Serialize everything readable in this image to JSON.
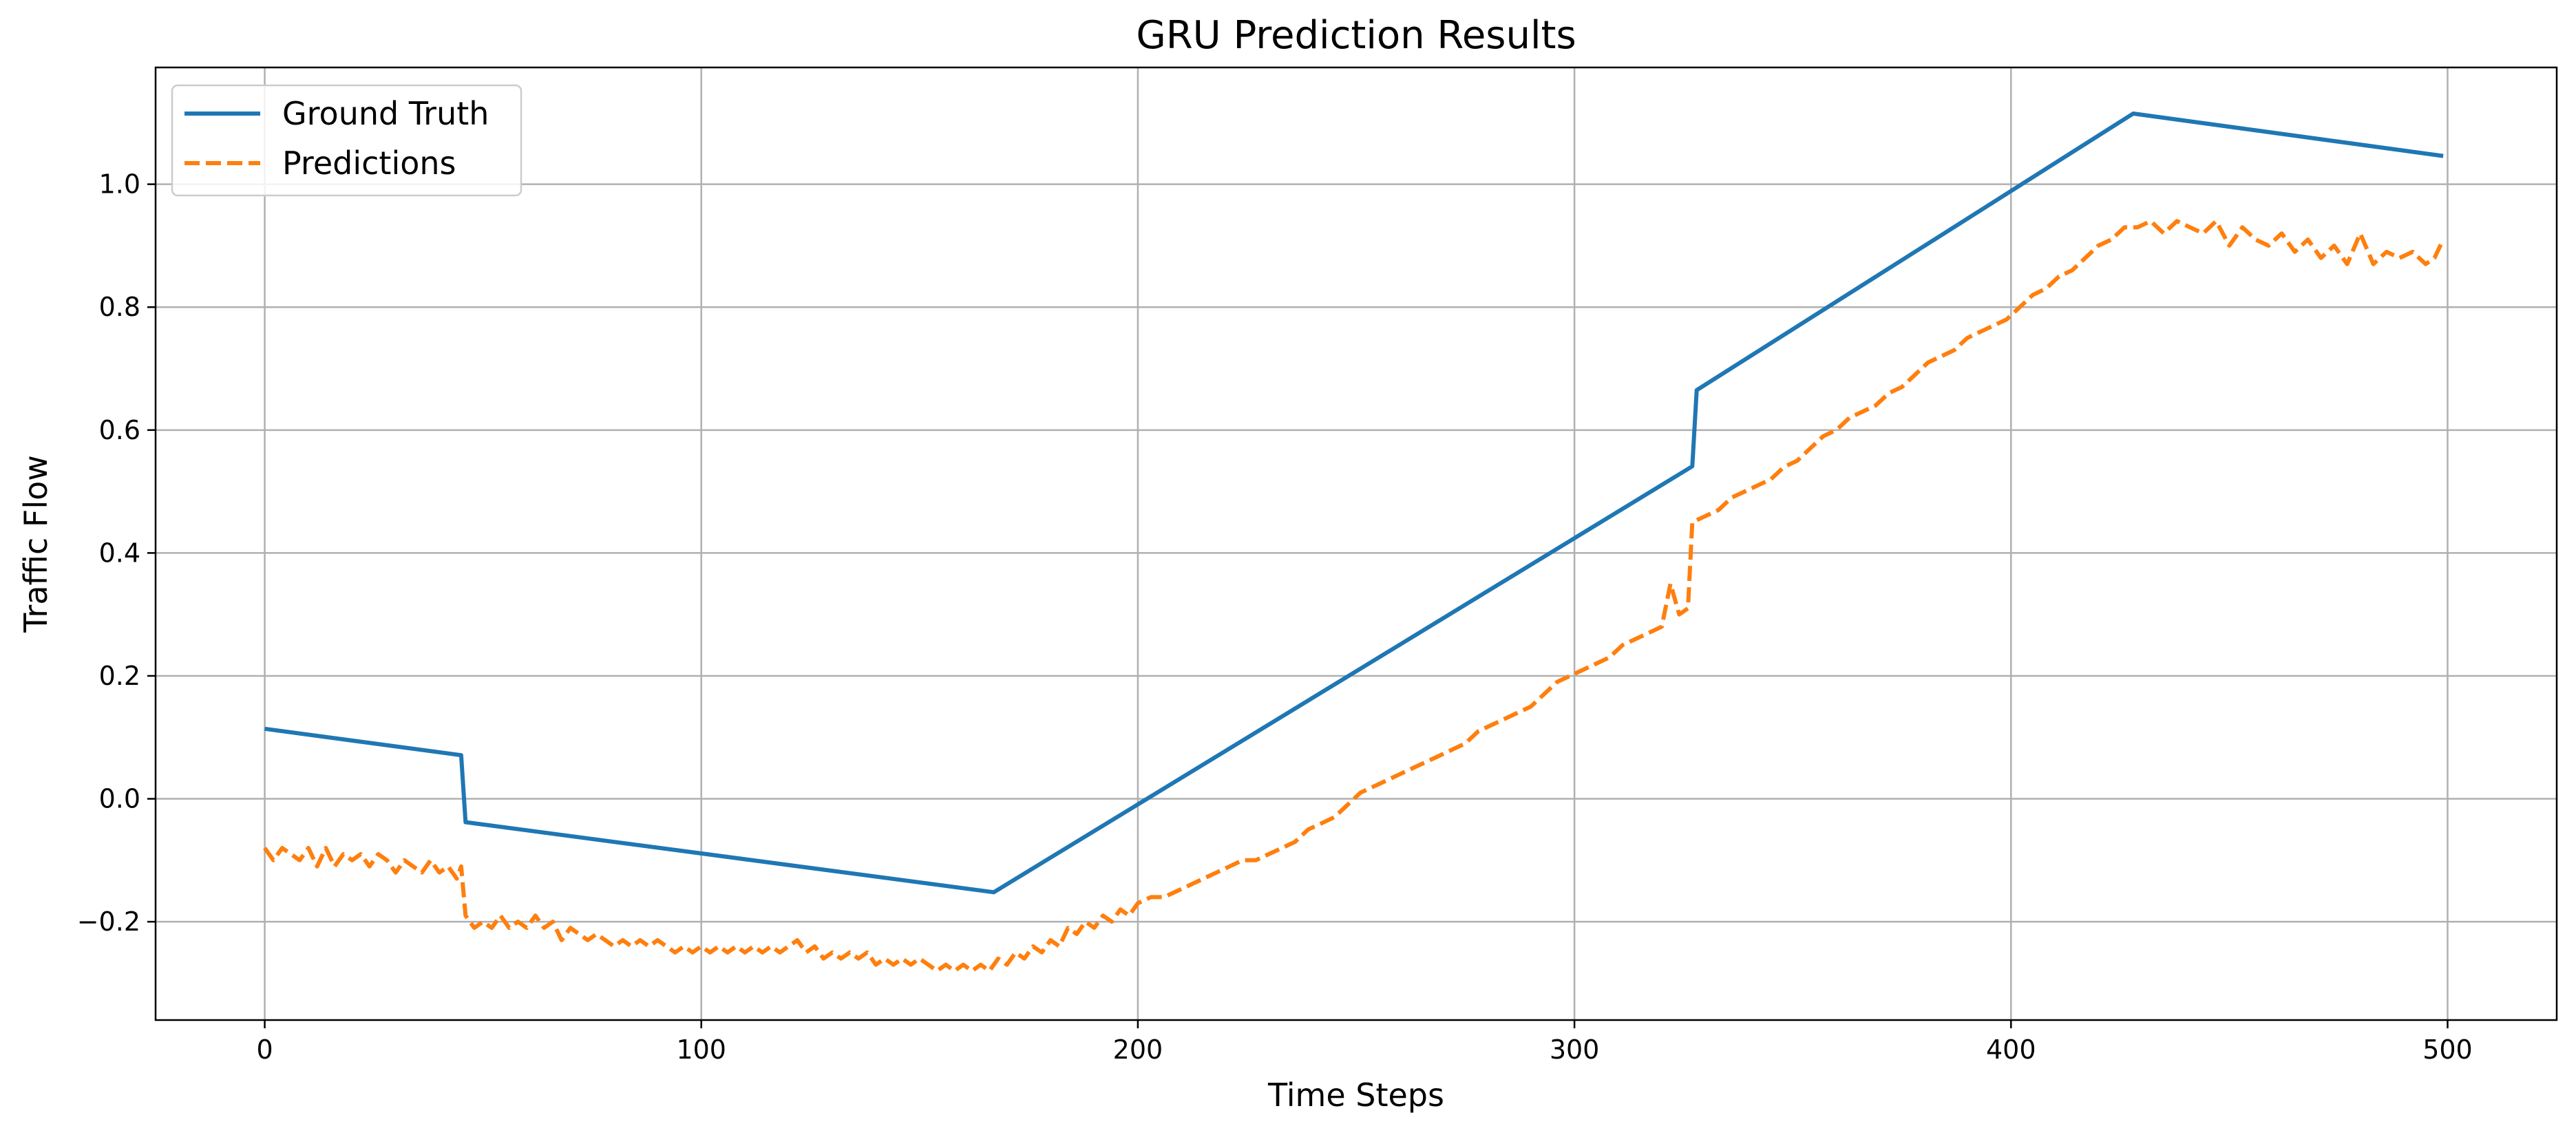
{
  "chart_data": {
    "type": "line",
    "title": "GRU Prediction Results",
    "xlabel": "Time Steps",
    "ylabel": "Traffic Flow",
    "xlim": [
      -25,
      525
    ],
    "ylim": [
      -0.36,
      1.19
    ],
    "xticks": [
      0,
      100,
      200,
      300,
      400,
      500
    ],
    "xtick_labels": [
      "0",
      "100",
      "200",
      "300",
      "400",
      "500"
    ],
    "yticks": [
      -0.2,
      0.0,
      0.2,
      0.4,
      0.6,
      0.8,
      1.0
    ],
    "ytick_labels": [
      "−0.2",
      "0.0",
      "0.2",
      "0.4",
      "0.6",
      "0.8",
      "1.0"
    ],
    "grid": true,
    "legend_position": "top-left",
    "series": [
      {
        "name": "Ground Truth",
        "color": "#1f77b4",
        "style": "solid",
        "points": [
          [
            0,
            0.114
          ],
          [
            45,
            0.071
          ],
          [
            46,
            -0.038
          ],
          [
            167,
            -0.152
          ],
          [
            327,
            0.541
          ],
          [
            328,
            0.665
          ],
          [
            428,
            1.115
          ],
          [
            499,
            1.046
          ]
        ]
      },
      {
        "name": "Predictions",
        "color": "#ff7f0e",
        "style": "dashed",
        "points": [
          [
            0,
            -0.08
          ],
          [
            2,
            -0.1
          ],
          [
            4,
            -0.08
          ],
          [
            6,
            -0.09
          ],
          [
            8,
            -0.1
          ],
          [
            10,
            -0.08
          ],
          [
            12,
            -0.11
          ],
          [
            14,
            -0.08
          ],
          [
            16,
            -0.11
          ],
          [
            18,
            -0.09
          ],
          [
            20,
            -0.1
          ],
          [
            22,
            -0.09
          ],
          [
            24,
            -0.11
          ],
          [
            26,
            -0.09
          ],
          [
            28,
            -0.1
          ],
          [
            30,
            -0.12
          ],
          [
            32,
            -0.1
          ],
          [
            34,
            -0.11
          ],
          [
            36,
            -0.12
          ],
          [
            38,
            -0.1
          ],
          [
            40,
            -0.12
          ],
          [
            42,
            -0.11
          ],
          [
            44,
            -0.13
          ],
          [
            45,
            -0.11
          ],
          [
            46,
            -0.19
          ],
          [
            48,
            -0.21
          ],
          [
            50,
            -0.2
          ],
          [
            52,
            -0.21
          ],
          [
            54,
            -0.19
          ],
          [
            56,
            -0.21
          ],
          [
            58,
            -0.2
          ],
          [
            60,
            -0.21
          ],
          [
            62,
            -0.19
          ],
          [
            64,
            -0.21
          ],
          [
            66,
            -0.2
          ],
          [
            68,
            -0.23
          ],
          [
            70,
            -0.21
          ],
          [
            72,
            -0.22
          ],
          [
            74,
            -0.23
          ],
          [
            76,
            -0.22
          ],
          [
            78,
            -0.23
          ],
          [
            80,
            -0.24
          ],
          [
            82,
            -0.23
          ],
          [
            84,
            -0.24
          ],
          [
            86,
            -0.23
          ],
          [
            88,
            -0.24
          ],
          [
            90,
            -0.23
          ],
          [
            92,
            -0.24
          ],
          [
            94,
            -0.25
          ],
          [
            96,
            -0.24
          ],
          [
            98,
            -0.25
          ],
          [
            100,
            -0.24
          ],
          [
            102,
            -0.25
          ],
          [
            104,
            -0.24
          ],
          [
            106,
            -0.25
          ],
          [
            108,
            -0.24
          ],
          [
            110,
            -0.25
          ],
          [
            112,
            -0.24
          ],
          [
            114,
            -0.25
          ],
          [
            116,
            -0.24
          ],
          [
            118,
            -0.25
          ],
          [
            120,
            -0.24
          ],
          [
            122,
            -0.23
          ],
          [
            124,
            -0.25
          ],
          [
            126,
            -0.24
          ],
          [
            128,
            -0.26
          ],
          [
            130,
            -0.25
          ],
          [
            132,
            -0.26
          ],
          [
            134,
            -0.25
          ],
          [
            136,
            -0.26
          ],
          [
            138,
            -0.25
          ],
          [
            140,
            -0.27
          ],
          [
            142,
            -0.26
          ],
          [
            144,
            -0.27
          ],
          [
            146,
            -0.26
          ],
          [
            148,
            -0.27
          ],
          [
            150,
            -0.26
          ],
          [
            152,
            -0.27
          ],
          [
            154,
            -0.28
          ],
          [
            156,
            -0.27
          ],
          [
            158,
            -0.28
          ],
          [
            160,
            -0.27
          ],
          [
            162,
            -0.28
          ],
          [
            164,
            -0.27
          ],
          [
            166,
            -0.28
          ],
          [
            168,
            -0.26
          ],
          [
            170,
            -0.27
          ],
          [
            172,
            -0.25
          ],
          [
            174,
            -0.26
          ],
          [
            176,
            -0.24
          ],
          [
            178,
            -0.25
          ],
          [
            180,
            -0.23
          ],
          [
            182,
            -0.24
          ],
          [
            184,
            -0.21
          ],
          [
            186,
            -0.22
          ],
          [
            188,
            -0.2
          ],
          [
            190,
            -0.21
          ],
          [
            192,
            -0.19
          ],
          [
            194,
            -0.2
          ],
          [
            196,
            -0.18
          ],
          [
            198,
            -0.19
          ],
          [
            200,
            -0.17
          ],
          [
            203,
            -0.16
          ],
          [
            206,
            -0.16
          ],
          [
            209,
            -0.15
          ],
          [
            212,
            -0.14
          ],
          [
            215,
            -0.13
          ],
          [
            218,
            -0.12
          ],
          [
            221,
            -0.11
          ],
          [
            224,
            -0.1
          ],
          [
            227,
            -0.1
          ],
          [
            230,
            -0.09
          ],
          [
            233,
            -0.08
          ],
          [
            236,
            -0.07
          ],
          [
            239,
            -0.05
          ],
          [
            242,
            -0.04
          ],
          [
            245,
            -0.03
          ],
          [
            248,
            -0.01
          ],
          [
            251,
            0.01
          ],
          [
            254,
            0.02
          ],
          [
            257,
            0.03
          ],
          [
            260,
            0.04
          ],
          [
            263,
            0.05
          ],
          [
            266,
            0.06
          ],
          [
            269,
            0.07
          ],
          [
            272,
            0.08
          ],
          [
            275,
            0.09
          ],
          [
            278,
            0.11
          ],
          [
            281,
            0.12
          ],
          [
            284,
            0.13
          ],
          [
            287,
            0.14
          ],
          [
            290,
            0.15
          ],
          [
            293,
            0.17
          ],
          [
            296,
            0.19
          ],
          [
            299,
            0.2
          ],
          [
            302,
            0.21
          ],
          [
            305,
            0.22
          ],
          [
            308,
            0.23
          ],
          [
            311,
            0.25
          ],
          [
            314,
            0.26
          ],
          [
            317,
            0.27
          ],
          [
            320,
            0.28
          ],
          [
            322,
            0.35
          ],
          [
            324,
            0.3
          ],
          [
            326,
            0.31
          ],
          [
            327,
            0.45
          ],
          [
            330,
            0.46
          ],
          [
            333,
            0.47
          ],
          [
            336,
            0.49
          ],
          [
            339,
            0.5
          ],
          [
            342,
            0.51
          ],
          [
            345,
            0.52
          ],
          [
            348,
            0.54
          ],
          [
            351,
            0.55
          ],
          [
            354,
            0.57
          ],
          [
            357,
            0.59
          ],
          [
            360,
            0.6
          ],
          [
            363,
            0.62
          ],
          [
            366,
            0.63
          ],
          [
            369,
            0.64
          ],
          [
            372,
            0.66
          ],
          [
            375,
            0.67
          ],
          [
            378,
            0.69
          ],
          [
            381,
            0.71
          ],
          [
            384,
            0.72
          ],
          [
            387,
            0.73
          ],
          [
            390,
            0.75
          ],
          [
            393,
            0.76
          ],
          [
            396,
            0.77
          ],
          [
            399,
            0.78
          ],
          [
            402,
            0.8
          ],
          [
            405,
            0.82
          ],
          [
            408,
            0.83
          ],
          [
            411,
            0.85
          ],
          [
            414,
            0.86
          ],
          [
            417,
            0.88
          ],
          [
            420,
            0.9
          ],
          [
            423,
            0.91
          ],
          [
            426,
            0.93
          ],
          [
            429,
            0.93
          ],
          [
            432,
            0.94
          ],
          [
            435,
            0.92
          ],
          [
            438,
            0.94
          ],
          [
            441,
            0.93
          ],
          [
            444,
            0.92
          ],
          [
            447,
            0.94
          ],
          [
            450,
            0.9
          ],
          [
            453,
            0.93
          ],
          [
            456,
            0.91
          ],
          [
            459,
            0.9
          ],
          [
            462,
            0.92
          ],
          [
            465,
            0.89
          ],
          [
            468,
            0.91
          ],
          [
            471,
            0.88
          ],
          [
            474,
            0.9
          ],
          [
            477,
            0.87
          ],
          [
            480,
            0.92
          ],
          [
            483,
            0.87
          ],
          [
            486,
            0.89
          ],
          [
            489,
            0.88
          ],
          [
            492,
            0.89
          ],
          [
            495,
            0.87
          ],
          [
            497,
            0.88
          ],
          [
            499,
            0.91
          ]
        ]
      }
    ]
  }
}
